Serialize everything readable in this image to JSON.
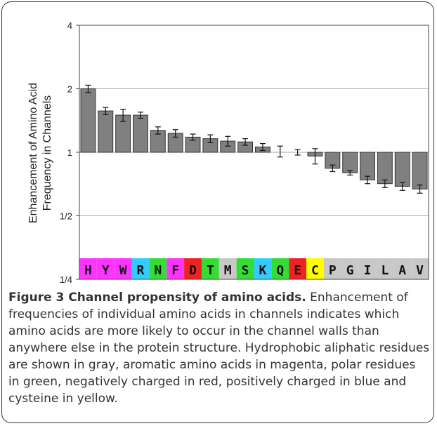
{
  "chart_data": {
    "type": "bar",
    "ylabel_line1": "Enhancement of Amino Acid",
    "ylabel_line2": "Frequency in Channels",
    "y_scale": "log2",
    "ylim": [
      0.25,
      4
    ],
    "yticks": [
      {
        "value": 4,
        "label": "4"
      },
      {
        "value": 2,
        "label": "2"
      },
      {
        "value": 1,
        "label": "1"
      },
      {
        "value": 0.5,
        "label": "1/2"
      },
      {
        "value": 0.25,
        "label": "1/4"
      }
    ],
    "grid": true,
    "baseline": 1,
    "categories": [
      "H",
      "Y",
      "W",
      "R",
      "N",
      "F",
      "D",
      "T",
      "M",
      "S",
      "K",
      "Q",
      "E",
      "C",
      "P",
      "G",
      "I",
      "L",
      "A",
      "V"
    ],
    "values": [
      2.0,
      1.57,
      1.5,
      1.5,
      1.27,
      1.23,
      1.18,
      1.16,
      1.13,
      1.12,
      1.06,
      1.01,
      1.0,
      0.96,
      0.84,
      0.8,
      0.74,
      0.71,
      0.69,
      0.67
    ],
    "errors": [
      0.08,
      0.06,
      0.1,
      0.05,
      0.05,
      0.05,
      0.04,
      0.05,
      0.06,
      0.04,
      0.04,
      0.06,
      0.03,
      0.08,
      0.03,
      0.02,
      0.03,
      0.03,
      0.03,
      0.03
    ],
    "label_colors": [
      "#ff33ff",
      "#ff33ff",
      "#ff33ff",
      "#33ccff",
      "#33dd33",
      "#ff33ff",
      "#ee2222",
      "#33dd33",
      "#c8c8c8",
      "#33dd33",
      "#33ccff",
      "#33dd33",
      "#ee2222",
      "#ffff00",
      "#c8c8c8",
      "#c8c8c8",
      "#c8c8c8",
      "#c8c8c8",
      "#c8c8c8",
      "#c8c8c8"
    ],
    "bar_color": "#808080",
    "grid_color": "#aaaaaa"
  },
  "caption": {
    "title": "Figure 3 Channel propensity of amino acids.",
    "body": " Enhancement of frequencies of individual amino acids in channels indicates which amino acids are more likely to occur in the channel walls than anywhere else in the protein structure. Hydrophobic aliphatic residues are shown in gray, aromatic amino acids in magenta, polar residues in green, negatively charged in red, positively charged in blue and cysteine in yellow."
  }
}
